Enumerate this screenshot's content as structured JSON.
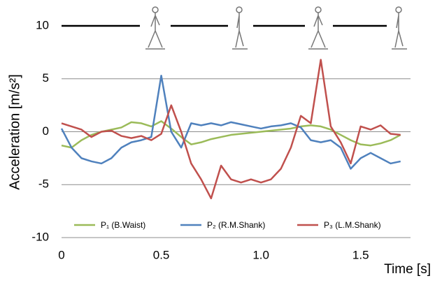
{
  "chart_data": {
    "type": "line",
    "y_label": "Acceleration [m/s²]",
    "x_label": "Time [s]",
    "x": [
      0,
      0.05,
      0.1,
      0.15,
      0.2,
      0.25,
      0.3,
      0.35,
      0.4,
      0.45,
      0.5,
      0.55,
      0.6,
      0.65,
      0.7,
      0.75,
      0.8,
      0.85,
      0.9,
      0.95,
      1.0,
      1.05,
      1.1,
      1.15,
      1.2,
      1.25,
      1.3,
      1.35,
      1.4,
      1.45,
      1.5,
      1.55,
      1.6,
      1.65,
      1.7
    ],
    "series": [
      {
        "name": "P₁ (B.Waist)",
        "color": "#9bbb59",
        "values": [
          -1.3,
          -1.5,
          -0.8,
          -0.3,
          0,
          0.2,
          0.4,
          0.9,
          0.8,
          0.5,
          1.0,
          0.3,
          -0.5,
          -1.2,
          -1.0,
          -0.7,
          -0.5,
          -0.3,
          -0.2,
          -0.1,
          0,
          0.1,
          0.2,
          0.3,
          0.5,
          0.6,
          0.5,
          0.2,
          -0.3,
          -0.8,
          -1.2,
          -1.3,
          -1.1,
          -0.8,
          -0.3
        ]
      },
      {
        "name": "P₂ (R.M.Shank)",
        "color": "#4f81bd",
        "values": [
          0.3,
          -1.5,
          -2.5,
          -2.8,
          -3.0,
          -2.5,
          -1.5,
          -1.0,
          -0.8,
          -0.5,
          5.3,
          0,
          -1.5,
          0.8,
          0.6,
          0.8,
          0.6,
          0.9,
          0.7,
          0.5,
          0.3,
          0.5,
          0.6,
          0.8,
          0.4,
          -0.8,
          -1.0,
          -0.8,
          -1.5,
          -3.5,
          -2.5,
          -2.0,
          -2.5,
          -3.0,
          -2.8
        ]
      },
      {
        "name": "P₃ (L.M.Shank)",
        "color": "#c0504d",
        "values": [
          0.8,
          0.5,
          0.2,
          -0.5,
          0,
          0.1,
          -0.4,
          -0.6,
          -0.4,
          -0.8,
          -0.2,
          2.5,
          0,
          -3.0,
          -4.5,
          -6.3,
          -3.2,
          -4.5,
          -4.8,
          -4.5,
          -4.8,
          -4.5,
          -3.5,
          -1.5,
          1.5,
          0.8,
          6.8,
          0.5,
          -1.0,
          -3.0,
          0.5,
          0.2,
          0.6,
          -0.2,
          -0.3
        ]
      }
    ],
    "xlim": [
      0,
      1.75
    ],
    "ylim": [
      -10,
      10
    ],
    "xticks": [
      0,
      0.5,
      {
        "value": 1,
        "label": "1.0"
      },
      1.5
    ],
    "yticks": [
      10,
      5,
      0,
      -5,
      -10
    ],
    "grid": true
  }
}
